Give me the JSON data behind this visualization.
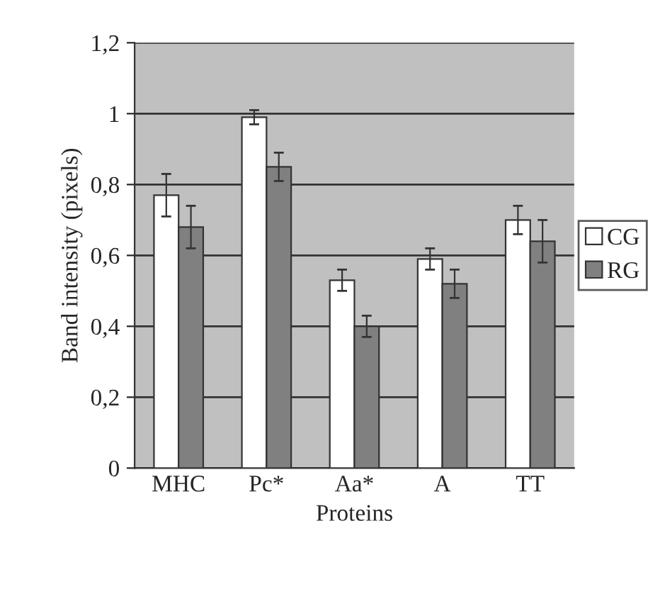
{
  "chart_data": {
    "type": "bar",
    "xlabel": "Proteins",
    "ylabel": "Band intensity (pixels)",
    "categories": [
      "MHC",
      "Pc*",
      "Aa*",
      "A",
      "TT"
    ],
    "series": [
      {
        "name": "CG",
        "color": "#ffffff",
        "values": [
          0.77,
          0.99,
          0.53,
          0.59,
          0.7
        ],
        "errors": [
          0.06,
          0.02,
          0.03,
          0.03,
          0.04
        ]
      },
      {
        "name": "RG",
        "color": "#808080",
        "values": [
          0.68,
          0.85,
          0.4,
          0.52,
          0.64
        ],
        "errors": [
          0.06,
          0.04,
          0.03,
          0.04,
          0.06
        ]
      }
    ],
    "ylim": [
      0,
      1.2
    ],
    "yticks": [
      {
        "value": 0,
        "label": "0"
      },
      {
        "value": 0.2,
        "label": "0,2"
      },
      {
        "value": 0.4,
        "label": "0,4"
      },
      {
        "value": 0.6,
        "label": "0,6"
      },
      {
        "value": 0.8,
        "label": "0,8"
      },
      {
        "value": 1,
        "label": "1"
      },
      {
        "value": 1.2,
        "label": "1,2"
      }
    ],
    "grid": "y",
    "legend": "right"
  }
}
